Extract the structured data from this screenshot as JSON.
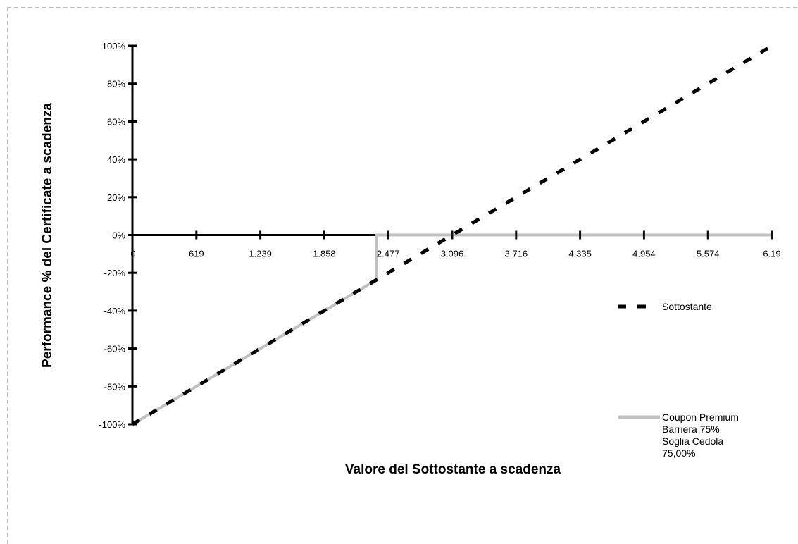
{
  "chart_data": {
    "type": "line",
    "title": "",
    "xlabel": "Valore del Sottostante a scadenza",
    "ylabel": "Performance % del Certificate a scadenza",
    "x_tick_labels": [
      "0",
      "619",
      "1.239",
      "1.858",
      "2.477",
      "3.096",
      "3.716",
      "4.335",
      "4.954",
      "5.574",
      "6.19"
    ],
    "xlim": [
      0,
      6193
    ],
    "y_tick_labels": [
      "100%",
      "80%",
      "60%",
      "40%",
      "20%",
      "0%",
      "-20%",
      "-40%",
      "-60%",
      "-80%",
      "-100%"
    ],
    "ylim": [
      -100,
      100
    ],
    "grid": false,
    "legend_position": "right",
    "series": [
      {
        "name": "Sottostante",
        "style": "dashed",
        "color": "#000000",
        "x": [
          0,
          6193
        ],
        "y": [
          -100,
          100
        ]
      },
      {
        "name": "Coupon Premium Barriera 75% Soglia Cedola 75,00%",
        "name_lines": [
          "Coupon Premium",
          "Barriera 75%",
          "Soglia Cedola",
          "75,00%"
        ],
        "style": "solid",
        "color": "#c0c0c0",
        "x": [
          0,
          2366,
          2366,
          6193
        ],
        "y": [
          -100,
          -23.6,
          0,
          0
        ]
      }
    ]
  }
}
